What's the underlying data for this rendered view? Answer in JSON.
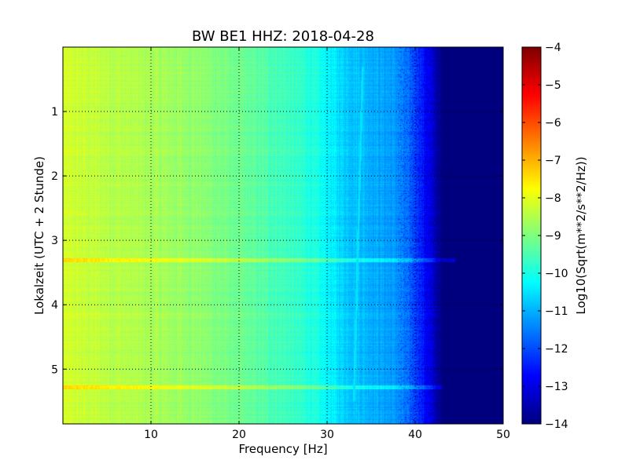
{
  "chart_data": {
    "type": "heatmap",
    "title": "BW BE1 HHZ: 2018-04-28",
    "xlabel": "Frequency [Hz]",
    "ylabel": "Lokalzeit (UTC + 2 Stunde)",
    "xlim": [
      0,
      50
    ],
    "ylim": [
      5.85,
      0.0
    ],
    "y_inverted": true,
    "xticks": [
      10,
      20,
      30,
      40,
      50
    ],
    "xtick_labels": [
      "10",
      "20",
      "30",
      "40",
      "50"
    ],
    "yticks": [
      1,
      2,
      3,
      4,
      5
    ],
    "ytick_labels": [
      "1",
      "2",
      "3",
      "4",
      "5"
    ],
    "grid": true,
    "colormap": "jet",
    "colorbar": {
      "label": "Log10(Sqrt(m**2/s**2/Hz))",
      "range": [
        -14,
        -4
      ],
      "ticks": [
        -4,
        -5,
        -6,
        -7,
        -8,
        -9,
        -10,
        -11,
        -12,
        -13,
        -14
      ],
      "tick_labels": [
        "−4",
        "−5",
        "−6",
        "−7",
        "−8",
        "−9",
        "−10",
        "−11",
        "−12",
        "−13",
        "−14"
      ]
    },
    "spectral_profile": {
      "frequency_hz": [
        0,
        5,
        10,
        15,
        20,
        25,
        28,
        30,
        32,
        35,
        38,
        40,
        42,
        43,
        50
      ],
      "level": [
        -8.2,
        -8.4,
        -8.6,
        -8.8,
        -9.2,
        -9.6,
        -9.9,
        -10.3,
        -10.7,
        -11.0,
        -11.3,
        -12.0,
        -13.2,
        -14.0,
        -14.0
      ]
    },
    "features": [
      {
        "name": "broadband line",
        "time_h": 3.3,
        "level_offset": 0.8,
        "f_max_hz": 44.5
      },
      {
        "name": "broadband line",
        "time_h": 5.28,
        "level_offset": 0.8,
        "f_max_hz": 43
      },
      {
        "name": "drifting tone",
        "time_start_h": 0.3,
        "freq_start_hz": 34.0,
        "time_end_h": 5.5,
        "freq_end_hz": 33.0,
        "level": -10.5
      }
    ]
  }
}
